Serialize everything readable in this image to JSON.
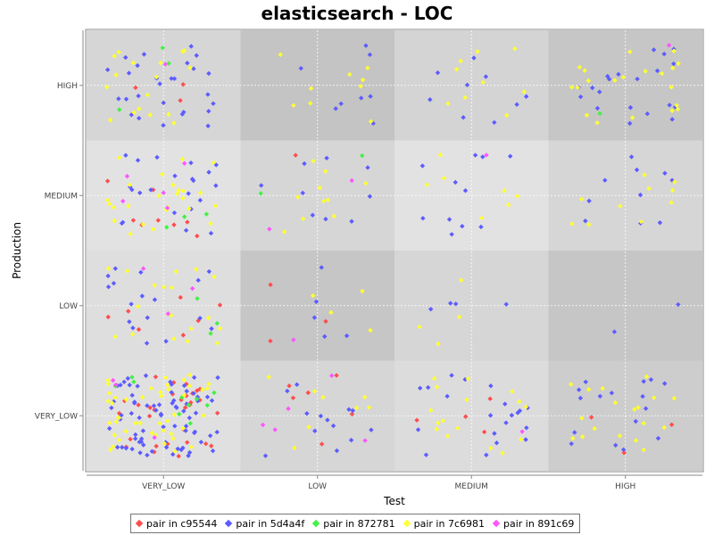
{
  "chart_data": {
    "type": "scatter",
    "title": "elasticsearch - LOC",
    "xlabel": "Test",
    "ylabel": "Production",
    "x_categories": [
      "VERY_LOW",
      "LOW",
      "MEDIUM",
      "HIGH"
    ],
    "y_categories": [
      "VERY_LOW",
      "LOW",
      "MEDIUM",
      "HIGH"
    ],
    "legend_position": "bottom",
    "grid": true,
    "cell_shading": [
      [
        "#e0e0e0",
        "#d6d6d6",
        "#dcdcdc",
        "#cdcdcd"
      ],
      [
        "#dedede",
        "#c6c6c6",
        "#d6d6d6",
        "#c6c6c6"
      ],
      [
        "#e2e2e2",
        "#d6d6d6",
        "#e2e2e2",
        "#d6d6d6"
      ],
      [
        "#d6d6d6",
        "#c4c4c4",
        "#d4d4d4",
        "#c6c6c6"
      ]
    ],
    "series": [
      {
        "name": "pair in c95544",
        "color": "#ff4d4d",
        "counts": [
          [
            30,
            6,
            4,
            3
          ],
          [
            7,
            3,
            0,
            0
          ],
          [
            8,
            1,
            0,
            0
          ],
          [
            3,
            0,
            0,
            0
          ]
        ]
      },
      {
        "name": "pair in 5d4a4f",
        "color": "#5c5cff",
        "counts": [
          [
            75,
            13,
            20,
            16
          ],
          [
            17,
            5,
            4,
            2
          ],
          [
            22,
            9,
            11,
            10
          ],
          [
            27,
            8,
            9,
            20
          ]
        ]
      },
      {
        "name": "pair in 872781",
        "color": "#44f044",
        "counts": [
          [
            10,
            0,
            0,
            0
          ],
          [
            3,
            0,
            0,
            0
          ],
          [
            3,
            2,
            0,
            0
          ],
          [
            3,
            0,
            0,
            1
          ]
        ]
      },
      {
        "name": "pair in 7c6981",
        "color": "#ffff33",
        "counts": [
          [
            45,
            8,
            16,
            18
          ],
          [
            18,
            4,
            4,
            0
          ],
          [
            25,
            10,
            7,
            10
          ],
          [
            17,
            9,
            9,
            20
          ]
        ]
      },
      {
        "name": "pair in 891c69",
        "color": "#ff55ff",
        "counts": [
          [
            3,
            5,
            1,
            0
          ],
          [
            3,
            1,
            0,
            0
          ],
          [
            5,
            2,
            1,
            0
          ],
          [
            1,
            0,
            0,
            1
          ]
        ]
      }
    ]
  }
}
